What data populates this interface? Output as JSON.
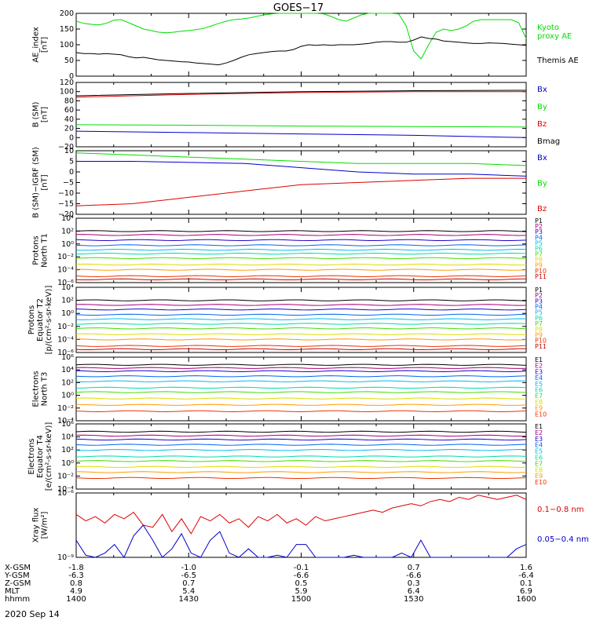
{
  "title": "GOES−17",
  "date": "2020 Sep 14",
  "colors": {
    "black": "#000000",
    "blue": "#0000cc",
    "green": "#00dd00",
    "red": "#dd0000",
    "p": [
      "#000000",
      "#aa0077",
      "#2200cc",
      "#0066ee",
      "#00bbee",
      "#00ddaa",
      "#44dd00",
      "#dddd00",
      "#ff9900",
      "#ee3300",
      "#cc0000"
    ],
    "e": [
      "#000000",
      "#aa0077",
      "#2200cc",
      "#0066ee",
      "#00bbee",
      "#00ddaa",
      "#44dd00",
      "#dddd00",
      "#ff9900",
      "#ee3300"
    ]
  },
  "footer": {
    "rows": [
      {
        "label": "X-GSM",
        "values": [
          "-1.8",
          "-1.0",
          "-0.1",
          "0.7",
          "1.6"
        ]
      },
      {
        "label": "Y-GSM",
        "values": [
          "-6.3",
          "-6.5",
          "-6.6",
          "-6.6",
          "-6.4"
        ]
      },
      {
        "label": "Z-GSM",
        "values": [
          "0.8",
          "0.7",
          "0.5",
          "0.3",
          "0.1"
        ]
      },
      {
        "label": "MLT",
        "values": [
          "4.9",
          "5.4",
          "5.9",
          "6.4",
          "6.9"
        ]
      },
      {
        "label": "hhmm",
        "values": [
          "1400",
          "1430",
          "1500",
          "1530",
          "1600"
        ]
      }
    ]
  },
  "chart_data": [
    {
      "type": "line",
      "ylabel": [
        "AE_index",
        "[nT]"
      ],
      "ylim": [
        0,
        200
      ],
      "yticks": [
        "0",
        "50",
        "100",
        "150",
        "200"
      ],
      "legend": [
        {
          "label": "Kyoto",
          "color": "green"
        },
        {
          "label": "proxy AE",
          "color": "green"
        },
        {
          "label": "Themis AE",
          "color": "black"
        }
      ],
      "x": [
        0,
        2,
        4,
        6,
        8,
        10,
        12,
        14,
        16,
        18,
        20,
        22,
        24,
        26,
        28,
        30,
        32,
        34,
        36,
        38,
        40,
        42,
        44,
        46,
        48,
        50,
        52,
        54,
        56,
        58,
        60,
        62,
        64,
        66,
        68,
        70,
        72,
        74,
        76,
        78,
        80,
        82,
        84,
        86,
        88,
        90,
        92,
        94,
        96,
        98,
        100,
        102,
        104,
        106,
        108,
        110,
        112,
        114,
        116,
        118,
        120
      ],
      "series": [
        {
          "name": "Kyoto proxy AE",
          "color": "green",
          "values": [
            175,
            168,
            165,
            163,
            168,
            178,
            180,
            170,
            160,
            150,
            145,
            140,
            138,
            140,
            143,
            145,
            148,
            152,
            160,
            168,
            175,
            180,
            182,
            185,
            190,
            195,
            198,
            200,
            200,
            200,
            200,
            200,
            200,
            198,
            190,
            180,
            175,
            185,
            195,
            200,
            200,
            200,
            200,
            198,
            160,
            80,
            55,
            100,
            140,
            150,
            145,
            150,
            160,
            175,
            180,
            180,
            180,
            180,
            180,
            170,
            120
          ]
        },
        {
          "name": "Themis AE",
          "color": "black",
          "values": [
            75,
            72,
            72,
            70,
            72,
            70,
            68,
            62,
            58,
            60,
            56,
            52,
            50,
            48,
            46,
            45,
            42,
            40,
            38,
            36,
            42,
            50,
            60,
            68,
            72,
            75,
            78,
            80,
            80,
            85,
            95,
            100,
            98,
            100,
            98,
            100,
            100,
            100,
            102,
            104,
            108,
            110,
            110,
            108,
            108,
            115,
            125,
            120,
            118,
            112,
            110,
            108,
            106,
            104,
            104,
            106,
            105,
            104,
            102,
            100,
            98
          ]
        }
      ]
    },
    {
      "type": "line",
      "ylabel": [
        "B (SM)",
        "[nT]"
      ],
      "ylim": [
        -20,
        120
      ],
      "yticks": [
        "−20",
        "0",
        "20",
        "40",
        "60",
        "80",
        "100",
        "120"
      ],
      "legend": [
        {
          "label": "Bx",
          "color": "blue"
        },
        {
          "label": "By",
          "color": "green"
        },
        {
          "label": "Bz",
          "color": "red"
        },
        {
          "label": "Bmag",
          "color": "black"
        }
      ],
      "x": [
        0,
        30,
        60,
        90,
        120
      ],
      "series": [
        {
          "name": "Bx",
          "color": "blue",
          "values": [
            14,
            11,
            8,
            5,
            0
          ]
        },
        {
          "name": "By",
          "color": "green",
          "values": [
            28,
            27,
            25,
            24,
            23
          ]
        },
        {
          "name": "Bz",
          "color": "red",
          "values": [
            88,
            94,
            98,
            100,
            100
          ]
        },
        {
          "name": "Bmag",
          "color": "black",
          "values": [
            91,
            96,
            100,
            102,
            103
          ]
        }
      ]
    },
    {
      "type": "line",
      "ylabel": [
        "B (SM)−IGRF (SM)",
        "[nT]"
      ],
      "ylim": [
        -20,
        10
      ],
      "yticks": [
        "−20",
        "−15",
        "−10",
        "−5",
        "0",
        "5",
        "10"
      ],
      "legend": [
        {
          "label": "Bx",
          "color": "blue"
        },
        {
          "label": "By",
          "color": "green"
        },
        {
          "label": "Bz",
          "color": "red"
        }
      ],
      "x": [
        0,
        15,
        30,
        45,
        60,
        75,
        90,
        105,
        120
      ],
      "series": [
        {
          "name": "Bx",
          "color": "blue",
          "values": [
            5,
            5,
            4.5,
            4,
            2,
            0,
            -1,
            -1,
            -2
          ]
        },
        {
          "name": "By",
          "color": "green",
          "values": [
            9,
            8,
            7,
            6,
            5,
            4,
            4,
            4,
            3
          ]
        },
        {
          "name": "Bz",
          "color": "red",
          "values": [
            -16,
            -15,
            -12,
            -9,
            -6,
            -5,
            -4,
            -3,
            -3
          ]
        }
      ]
    },
    {
      "type": "line",
      "log": true,
      "ylabel": [
        "Protons",
        "North T1"
      ],
      "ylim_exp": [
        -6,
        4
      ],
      "yticks": [
        "10⁴",
        "10²",
        "10⁰",
        "10⁻²",
        "10⁻⁴",
        "10⁻⁶"
      ],
      "legend_labels": [
        "P1",
        "P2",
        "P3",
        "P4",
        "P5",
        "P6",
        "P7",
        "P8",
        "P9",
        "P10",
        "P11"
      ],
      "levels": [
        2.0,
        1.4,
        0.6,
        -0.2,
        -0.9,
        -1.5,
        -2.2,
        -3.2,
        -4.0,
        -5.0,
        -5.5
      ]
    },
    {
      "type": "line",
      "log": true,
      "ylabel": [
        "Protons",
        "Equator T2",
        "[p/(cm²-s-sr-keV)]"
      ],
      "ylim_exp": [
        -6,
        4
      ],
      "yticks": [
        "10⁴",
        "10²",
        "10⁰",
        "10⁻²",
        "10⁻⁴",
        "10⁻⁶"
      ],
      "legend_labels": [
        "P1",
        "P2",
        "P3",
        "P4",
        "P5",
        "P6",
        "P7",
        "P8",
        "P9",
        "P10",
        "P11"
      ],
      "levels": [
        2.0,
        1.3,
        0.6,
        -0.2,
        -0.9,
        -1.6,
        -2.3,
        -3.2,
        -4.0,
        -5.0,
        -5.5
      ]
    },
    {
      "type": "line",
      "log": true,
      "ylabel": [
        "Electrons",
        "North T3"
      ],
      "ylim_exp": [
        -4,
        6
      ],
      "yticks": [
        "10⁶",
        "10⁴",
        "10²",
        "10⁰",
        "10⁻²",
        "10⁻⁴"
      ],
      "legend_labels": [
        "E1",
        "E2",
        "E3",
        "E4",
        "E5",
        "E6",
        "E7",
        "E8",
        "E9",
        "E10"
      ],
      "levels": [
        4.8,
        4.3,
        3.8,
        3.0,
        2.2,
        1.2,
        0.5,
        -0.5,
        -1.5,
        -2.5
      ]
    },
    {
      "type": "line",
      "log": true,
      "ylabel": [
        "Electrons",
        "Equator T4",
        "[e/(cm²-s-sr-keV)]"
      ],
      "ylim_exp": [
        -4,
        6
      ],
      "yticks": [
        "10⁶",
        "10⁴",
        "10²",
        "10⁰",
        "10⁻²",
        "10⁻⁴"
      ],
      "legend_labels": [
        "E1",
        "E2",
        "E3",
        "E4",
        "E5",
        "E6",
        "E7",
        "E8",
        "E9",
        "E10"
      ],
      "levels": [
        4.8,
        4.2,
        3.6,
        2.8,
        2.0,
        1.0,
        0.3,
        -0.6,
        -1.4,
        -2.3
      ]
    },
    {
      "type": "line",
      "log": true,
      "ylabel": [
        "Xray flux",
        "[W/m²]"
      ],
      "ylim_exp": [
        -9,
        -6
      ],
      "yticks": [
        "10⁻⁶",
        "10⁻⁹"
      ],
      "legend": [
        {
          "label": "0.1−0.8 nm",
          "color": "red"
        },
        {
          "label": "0.05−0.4 nm",
          "color": "blue"
        }
      ],
      "series": [
        {
          "name": "0.1−0.8 nm",
          "color": "red",
          "values": [
            -7.0,
            -7.3,
            -7.1,
            -7.4,
            -7.0,
            -7.2,
            -6.9,
            -7.5,
            -7.6,
            -7.0,
            -7.8,
            -7.2,
            -7.9,
            -7.1,
            -7.3,
            -7.0,
            -7.4,
            -7.2,
            -7.6,
            -7.1,
            -7.3,
            -7.0,
            -7.4,
            -7.2,
            -7.5,
            -7.1,
            -7.3,
            -7.2,
            -7.1,
            -7.0,
            -6.9,
            -6.8,
            -6.9,
            -6.7,
            -6.6,
            -6.5,
            -6.6,
            -6.4,
            -6.3,
            -6.4,
            -6.2,
            -6.3,
            -6.1,
            -6.2,
            -6.3,
            -6.2,
            -6.1,
            -6.3
          ]
        },
        {
          "name": "0.05−0.4 nm",
          "color": "blue",
          "values": [
            -8.2,
            -8.9,
            -9.0,
            -8.8,
            -8.4,
            -9.0,
            -8.0,
            -7.5,
            -8.2,
            -9.0,
            -8.6,
            -7.9,
            -8.8,
            -9.0,
            -8.2,
            -7.8,
            -8.8,
            -9.0,
            -8.6,
            -9.0,
            -9.0,
            -8.9,
            -9.0,
            -8.4,
            -8.4,
            -9.0,
            -9.0,
            -9.0,
            -9.0,
            -8.9,
            -9.0,
            -9.0,
            -9.0,
            -9.0,
            -8.8,
            -9.0,
            -8.2,
            -9.0,
            -9.0,
            -9.0,
            -9.0,
            -9.0,
            -9.0,
            -9.0,
            -9.0,
            -9.0,
            -8.6,
            -8.4
          ]
        }
      ]
    }
  ]
}
